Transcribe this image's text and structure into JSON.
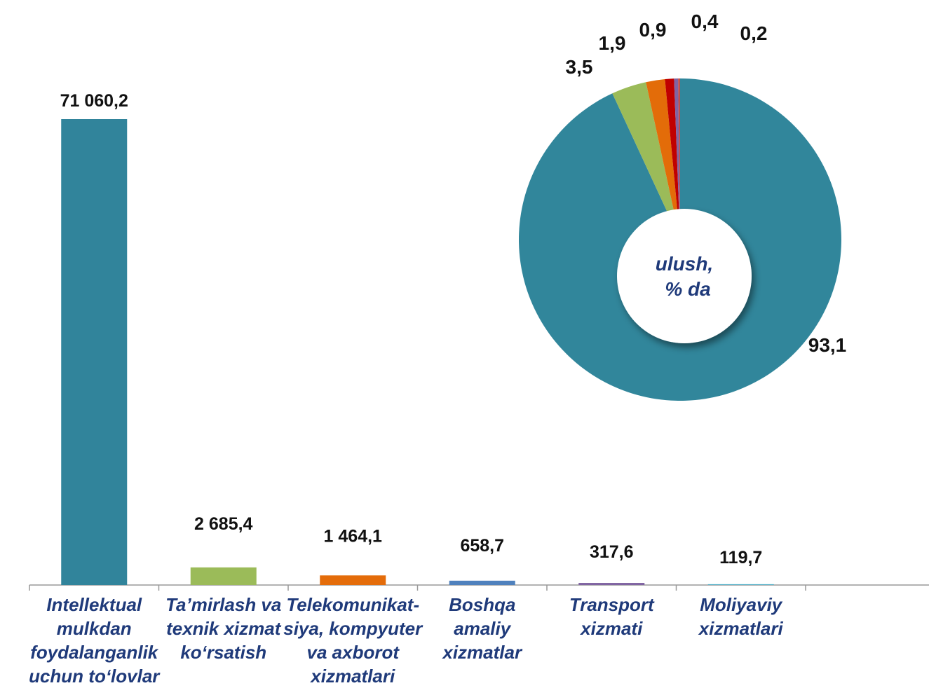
{
  "chart_data": [
    {
      "type": "bar",
      "categories": [
        "Intellektual mulkdan foydalanganlik uchun to‘lovlar",
        "Ta’mirlash va texnik xizmat ko‘rsatish",
        "Telekomunikat-siya, kompyuter va axborot xizmatlari",
        "Boshqa amaliy xizmatlar",
        "Transport xizmati",
        "Moliyaviy xizmatlari"
      ],
      "values": [
        71060.2,
        2685.4,
        1464.1,
        658.7,
        317.6,
        119.7
      ],
      "value_labels": [
        "71 060,2",
        "2 685,4",
        "1 464,1",
        "658,7",
        "317,6",
        "119,7"
      ],
      "colors": [
        "#31849b",
        "#9bbb59",
        "#e46c0a",
        "#4f81bd",
        "#8064a2",
        "#4bacc6"
      ]
    },
    {
      "type": "donut",
      "title": "ulush, % da",
      "values": [
        93.1,
        3.5,
        1.9,
        0.9,
        0.4,
        0.2
      ],
      "value_labels": [
        "93,1",
        "3,5",
        "1,9",
        "0,9",
        "0,4",
        "0,2"
      ],
      "colors": [
        "#31869b",
        "#9bbb59",
        "#e36c09",
        "#c00000",
        "#8064a2",
        "#c0504d"
      ]
    }
  ]
}
